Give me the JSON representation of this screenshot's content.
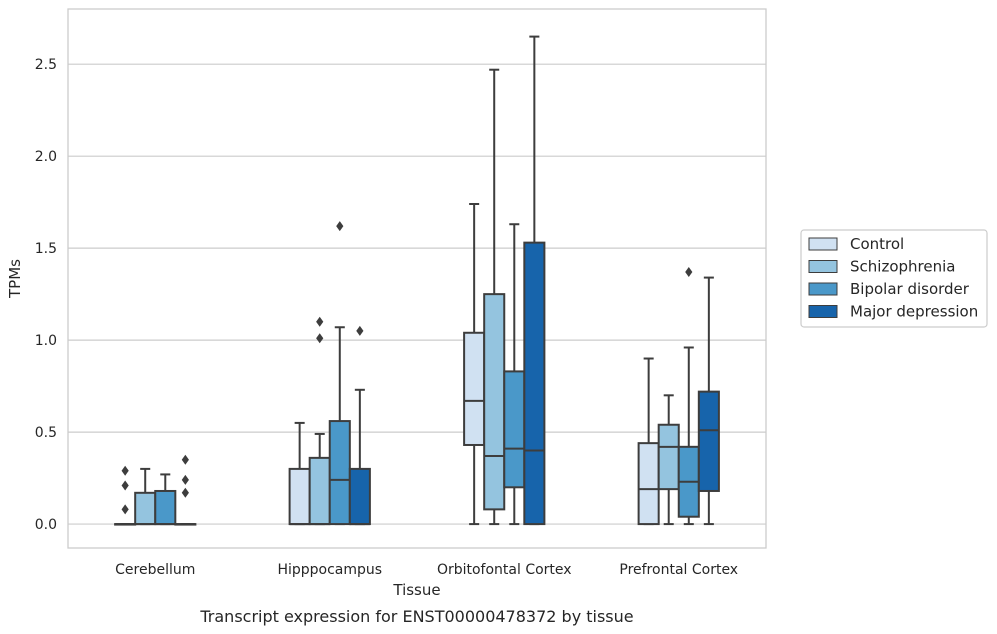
{
  "chart_data": {
    "type": "box",
    "xlabel": "Tissue",
    "ylabel": "TPMs",
    "caption": "Transcript expression for ENST00000478372 by tissue",
    "ylim": [
      -0.13,
      2.8
    ],
    "yticks": [
      "0.0",
      "0.5",
      "1.0",
      "1.5",
      "2.0",
      "2.5"
    ],
    "grid": true,
    "legend_position": "right",
    "categories": [
      "Cerebellum",
      "Hipppocampus",
      "Orbitofontal Cortex",
      "Prefrontal Cortex"
    ],
    "series": [
      {
        "name": "Control",
        "color": "#d0e1f2",
        "boxes": [
          {
            "whislo": 0,
            "q1": 0,
            "med": 0,
            "q3": 0,
            "whishi": 0,
            "fliers": [
              0.08,
              0.21,
              0.29
            ]
          },
          {
            "whislo": 0,
            "q1": 0,
            "med": 0,
            "q3": 0.3,
            "whishi": 0.55,
            "fliers": []
          },
          {
            "whislo": 0,
            "q1": 0.43,
            "med": 0.67,
            "q3": 1.04,
            "whishi": 1.74,
            "fliers": []
          },
          {
            "whislo": 0,
            "q1": 0,
            "med": 0.19,
            "q3": 0.44,
            "whishi": 0.9,
            "fliers": []
          }
        ]
      },
      {
        "name": "Schizophrenia",
        "color": "#94c4df",
        "boxes": [
          {
            "whislo": 0,
            "q1": 0,
            "med": 0,
            "q3": 0.17,
            "whishi": 0.3,
            "fliers": []
          },
          {
            "whislo": 0,
            "q1": 0,
            "med": 0,
            "q3": 0.36,
            "whishi": 0.49,
            "fliers": [
              1.01,
              1.1
            ]
          },
          {
            "whislo": 0,
            "q1": 0.08,
            "med": 0.37,
            "q3": 1.25,
            "whishi": 2.47,
            "fliers": []
          },
          {
            "whislo": 0,
            "q1": 0.19,
            "med": 0.42,
            "q3": 0.54,
            "whishi": 0.7,
            "fliers": []
          }
        ]
      },
      {
        "name": "Bipolar disorder",
        "color": "#4a98c9",
        "boxes": [
          {
            "whislo": 0,
            "q1": 0,
            "med": 0,
            "q3": 0.18,
            "whishi": 0.27,
            "fliers": []
          },
          {
            "whislo": 0,
            "q1": 0,
            "med": 0.24,
            "q3": 0.56,
            "whishi": 1.07,
            "fliers": [
              1.62
            ]
          },
          {
            "whislo": 0,
            "q1": 0.2,
            "med": 0.41,
            "q3": 0.83,
            "whishi": 1.63,
            "fliers": []
          },
          {
            "whislo": 0,
            "q1": 0.04,
            "med": 0.23,
            "q3": 0.42,
            "whishi": 0.96,
            "fliers": [
              1.37
            ]
          }
        ]
      },
      {
        "name": "Major depression",
        "color": "#1764ab",
        "boxes": [
          {
            "whislo": 0,
            "q1": 0,
            "med": 0,
            "q3": 0,
            "whishi": 0,
            "fliers": [
              0.17,
              0.24,
              0.35
            ]
          },
          {
            "whislo": 0,
            "q1": 0,
            "med": 0,
            "q3": 0.3,
            "whishi": 0.73,
            "fliers": [
              1.05
            ]
          },
          {
            "whislo": 0,
            "q1": 0,
            "med": 0.4,
            "q3": 1.53,
            "whishi": 2.65,
            "fliers": []
          },
          {
            "whislo": 0,
            "q1": 0.18,
            "med": 0.51,
            "q3": 0.72,
            "whishi": 1.34,
            "fliers": []
          }
        ]
      }
    ]
  }
}
